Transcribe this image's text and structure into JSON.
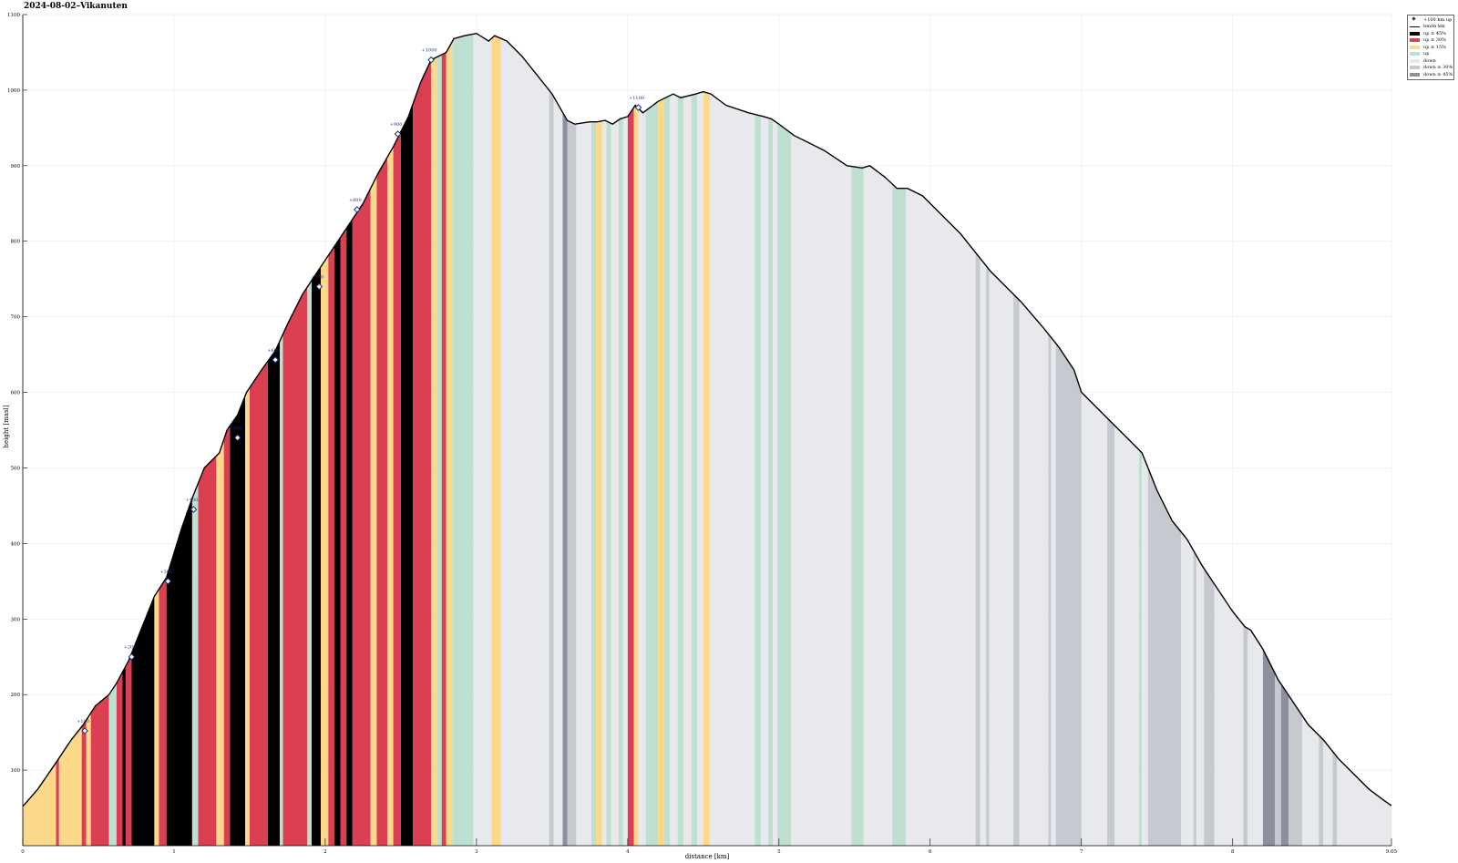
{
  "chart_data": {
    "type": "area",
    "title": "2024-08-02–Vikanuten",
    "xlabel": "distance [km]",
    "ylabel": "height [masl]",
    "xlim": [
      0,
      9.05
    ],
    "ylim": [
      0,
      1100
    ],
    "grid": true,
    "legend_position": "top-right",
    "x_ticks": [
      0,
      1,
      2,
      3,
      4,
      5,
      6,
      7,
      8,
      9.05
    ],
    "x_tick_labels": [
      "0",
      "1",
      "2",
      "3",
      "4",
      "5",
      "6",
      "7",
      "8",
      "9.05"
    ],
    "y_ticks": [
      100,
      200,
      300,
      400,
      500,
      600,
      700,
      800,
      900,
      1000,
      1100
    ],
    "y_tick_labels": [
      "100",
      "200",
      "300",
      "400",
      "500",
      "600",
      "700",
      "800",
      "900",
      "1000",
      "1100"
    ],
    "legend": [
      {
        "label": "+100 hm up",
        "kind": "marker",
        "color": "#1b2f8a"
      },
      {
        "label": "hm/m km",
        "kind": "line",
        "color": "#000000"
      },
      {
        "label": "up ≥ 45%",
        "kind": "band",
        "color": "#000000"
      },
      {
        "label": "up ≥ 30%",
        "kind": "band",
        "color": "#da4052"
      },
      {
        "label": "up ≥ 15%",
        "kind": "band",
        "color": "#fbd88a"
      },
      {
        "label": "up",
        "kind": "band",
        "color": "#bfdfd0"
      },
      {
        "label": "down",
        "kind": "band",
        "color": "#e8e9ec"
      },
      {
        "label": "down ≥ 30%",
        "kind": "band",
        "color": "#c7c9d0"
      },
      {
        "label": "down ≥ 45%",
        "kind": "band",
        "color": "#8d909c"
      }
    ],
    "profile": {
      "x": [
        0,
        0.1,
        0.22,
        0.32,
        0.4,
        0.48,
        0.57,
        0.62,
        0.7,
        0.78,
        0.87,
        0.95,
        1.05,
        1.12,
        1.2,
        1.3,
        1.35,
        1.42,
        1.48,
        1.58,
        1.67,
        1.75,
        1.85,
        1.95,
        2.05,
        2.15,
        2.25,
        2.35,
        2.45,
        2.55,
        2.63,
        2.7,
        2.75,
        2.8,
        2.85,
        2.92,
        3.0,
        3.08,
        3.12,
        3.2,
        3.3,
        3.4,
        3.5,
        3.6,
        3.65,
        3.75,
        3.8,
        3.85,
        3.9,
        3.95,
        4.0,
        4.05,
        4.1,
        4.2,
        4.3,
        4.35,
        4.45,
        4.5,
        4.55,
        4.65,
        4.8,
        4.9,
        4.95,
        5.0,
        5.1,
        5.2,
        5.3,
        5.45,
        5.55,
        5.6,
        5.7,
        5.78,
        5.85,
        5.95,
        6.1,
        6.2,
        6.3,
        6.4,
        6.5,
        6.6,
        6.75,
        6.85,
        6.95,
        7.0,
        7.1,
        7.2,
        7.3,
        7.4,
        7.5,
        7.6,
        7.7,
        7.8,
        7.9,
        8.0,
        8.08,
        8.12,
        8.2,
        8.25,
        8.3,
        8.4,
        8.5,
        8.6,
        8.7,
        8.8,
        8.9,
        9.0,
        9.05
      ],
      "y": [
        52,
        75,
        110,
        140,
        160,
        185,
        200,
        215,
        245,
        285,
        330,
        355,
        420,
        460,
        500,
        520,
        550,
        570,
        600,
        630,
        655,
        690,
        730,
        760,
        790,
        820,
        850,
        890,
        925,
        965,
        1010,
        1040,
        1045,
        1050,
        1068,
        1072,
        1075,
        1065,
        1072,
        1065,
        1045,
        1020,
        995,
        960,
        955,
        958,
        958,
        960,
        955,
        962,
        965,
        980,
        970,
        985,
        995,
        990,
        995,
        998,
        995,
        980,
        970,
        965,
        962,
        955,
        940,
        930,
        920,
        900,
        897,
        900,
        885,
        870,
        870,
        860,
        830,
        810,
        785,
        760,
        740,
        720,
        685,
        660,
        630,
        600,
        580,
        560,
        540,
        520,
        470,
        430,
        405,
        370,
        340,
        310,
        290,
        285,
        260,
        240,
        220,
        190,
        160,
        140,
        115,
        95,
        75,
        60,
        53
      ]
    },
    "segments": [
      {
        "from": 0.0,
        "to": 0.22,
        "type": "up ≥ 15%"
      },
      {
        "from": 0.22,
        "to": 0.24,
        "type": "up ≥ 30%"
      },
      {
        "from": 0.24,
        "to": 0.39,
        "type": "up ≥ 15%"
      },
      {
        "from": 0.39,
        "to": 0.42,
        "type": "up ≥ 30%"
      },
      {
        "from": 0.42,
        "to": 0.45,
        "type": "up ≥ 15%"
      },
      {
        "from": 0.45,
        "to": 0.57,
        "type": "up ≥ 30%"
      },
      {
        "from": 0.57,
        "to": 0.62,
        "type": "up"
      },
      {
        "from": 0.62,
        "to": 0.66,
        "type": "up ≥ 30%"
      },
      {
        "from": 0.66,
        "to": 0.68,
        "type": "up ≥ 45%"
      },
      {
        "from": 0.68,
        "to": 0.72,
        "type": "up ≥ 30%"
      },
      {
        "from": 0.72,
        "to": 0.75,
        "type": "up ≥ 45%"
      },
      {
        "from": 0.75,
        "to": 0.87,
        "type": "up ≥ 45%"
      },
      {
        "from": 0.87,
        "to": 0.9,
        "type": "up ≥ 15%"
      },
      {
        "from": 0.9,
        "to": 0.95,
        "type": "up ≥ 30%"
      },
      {
        "from": 0.95,
        "to": 1.12,
        "type": "up ≥ 45%"
      },
      {
        "from": 1.12,
        "to": 1.16,
        "type": "up"
      },
      {
        "from": 1.16,
        "to": 1.28,
        "type": "up ≥ 30%"
      },
      {
        "from": 1.28,
        "to": 1.33,
        "type": "up ≥ 15%"
      },
      {
        "from": 1.33,
        "to": 1.37,
        "type": "up ≥ 30%"
      },
      {
        "from": 1.37,
        "to": 1.47,
        "type": "up ≥ 45%"
      },
      {
        "from": 1.47,
        "to": 1.5,
        "type": "up ≥ 15%"
      },
      {
        "from": 1.5,
        "to": 1.62,
        "type": "up ≥ 30%"
      },
      {
        "from": 1.62,
        "to": 1.7,
        "type": "up ≥ 45%"
      },
      {
        "from": 1.7,
        "to": 1.72,
        "type": "up"
      },
      {
        "from": 1.72,
        "to": 1.88,
        "type": "up ≥ 30%"
      },
      {
        "from": 1.88,
        "to": 1.91,
        "type": "up"
      },
      {
        "from": 1.91,
        "to": 1.97,
        "type": "up ≥ 45%"
      },
      {
        "from": 1.97,
        "to": 2.02,
        "type": "up ≥ 15%"
      },
      {
        "from": 2.02,
        "to": 2.06,
        "type": "up ≥ 30%"
      },
      {
        "from": 2.06,
        "to": 2.1,
        "type": "up ≥ 45%"
      },
      {
        "from": 2.1,
        "to": 2.14,
        "type": "up ≥ 30%"
      },
      {
        "from": 2.14,
        "to": 2.18,
        "type": "up ≥ 45%"
      },
      {
        "from": 2.18,
        "to": 2.3,
        "type": "up ≥ 30%"
      },
      {
        "from": 2.3,
        "to": 2.34,
        "type": "up ≥ 15%"
      },
      {
        "from": 2.34,
        "to": 2.41,
        "type": "up ≥ 30%"
      },
      {
        "from": 2.41,
        "to": 2.45,
        "type": "up ≥ 15%"
      },
      {
        "from": 2.45,
        "to": 2.5,
        "type": "up ≥ 30%"
      },
      {
        "from": 2.5,
        "to": 2.58,
        "type": "up ≥ 45%"
      },
      {
        "from": 2.58,
        "to": 2.7,
        "type": "up ≥ 30%"
      },
      {
        "from": 2.7,
        "to": 2.74,
        "type": "up ≥ 15%"
      },
      {
        "from": 2.74,
        "to": 2.77,
        "type": "up"
      },
      {
        "from": 2.77,
        "to": 2.8,
        "type": "up ≥ 30%"
      },
      {
        "from": 2.8,
        "to": 2.84,
        "type": "up ≥ 15%"
      },
      {
        "from": 2.84,
        "to": 2.98,
        "type": "up"
      },
      {
        "from": 2.98,
        "to": 3.1,
        "type": "down"
      },
      {
        "from": 3.1,
        "to": 3.16,
        "type": "up ≥ 15%"
      },
      {
        "from": 3.16,
        "to": 3.48,
        "type": "down"
      },
      {
        "from": 3.48,
        "to": 3.51,
        "type": "down ≥ 30%"
      },
      {
        "from": 3.51,
        "to": 3.57,
        "type": "down"
      },
      {
        "from": 3.57,
        "to": 3.6,
        "type": "down ≥ 45%"
      },
      {
        "from": 3.6,
        "to": 3.66,
        "type": "down ≥ 30%"
      },
      {
        "from": 3.66,
        "to": 3.76,
        "type": "down"
      },
      {
        "from": 3.76,
        "to": 3.79,
        "type": "up"
      },
      {
        "from": 3.79,
        "to": 3.83,
        "type": "up ≥ 15%"
      },
      {
        "from": 3.83,
        "to": 3.86,
        "type": "down"
      },
      {
        "from": 3.86,
        "to": 3.89,
        "type": "up"
      },
      {
        "from": 3.89,
        "to": 3.94,
        "type": "down"
      },
      {
        "from": 3.94,
        "to": 3.97,
        "type": "up"
      },
      {
        "from": 3.97,
        "to": 4.0,
        "type": "down"
      },
      {
        "from": 4.0,
        "to": 4.04,
        "type": "up ≥ 30%"
      },
      {
        "from": 4.04,
        "to": 4.07,
        "type": "up ≥ 15%"
      },
      {
        "from": 4.07,
        "to": 4.12,
        "type": "down"
      },
      {
        "from": 4.12,
        "to": 4.2,
        "type": "up"
      },
      {
        "from": 4.2,
        "to": 4.24,
        "type": "up ≥ 15%"
      },
      {
        "from": 4.24,
        "to": 4.28,
        "type": "up"
      },
      {
        "from": 4.28,
        "to": 4.33,
        "type": "down"
      },
      {
        "from": 4.33,
        "to": 4.37,
        "type": "up"
      },
      {
        "from": 4.37,
        "to": 4.42,
        "type": "down"
      },
      {
        "from": 4.42,
        "to": 4.46,
        "type": "up"
      },
      {
        "from": 4.46,
        "to": 4.5,
        "type": "down"
      },
      {
        "from": 4.5,
        "to": 4.54,
        "type": "up ≥ 15%"
      },
      {
        "from": 4.54,
        "to": 4.84,
        "type": "down"
      },
      {
        "from": 4.84,
        "to": 4.88,
        "type": "up"
      },
      {
        "from": 4.88,
        "to": 4.93,
        "type": "down"
      },
      {
        "from": 4.93,
        "to": 4.96,
        "type": "up"
      },
      {
        "from": 4.96,
        "to": 4.99,
        "type": "down"
      },
      {
        "from": 4.99,
        "to": 5.08,
        "type": "up"
      },
      {
        "from": 5.08,
        "to": 5.48,
        "type": "down"
      },
      {
        "from": 5.48,
        "to": 5.56,
        "type": "up"
      },
      {
        "from": 5.56,
        "to": 5.75,
        "type": "down"
      },
      {
        "from": 5.75,
        "to": 5.84,
        "type": "up"
      },
      {
        "from": 5.84,
        "to": 6.3,
        "type": "down"
      },
      {
        "from": 6.3,
        "to": 6.33,
        "type": "down ≥ 30%"
      },
      {
        "from": 6.33,
        "to": 6.37,
        "type": "down"
      },
      {
        "from": 6.37,
        "to": 6.39,
        "type": "down ≥ 30%"
      },
      {
        "from": 6.39,
        "to": 6.55,
        "type": "down"
      },
      {
        "from": 6.55,
        "to": 6.59,
        "type": "down ≥ 30%"
      },
      {
        "from": 6.59,
        "to": 6.78,
        "type": "down"
      },
      {
        "from": 6.78,
        "to": 6.8,
        "type": "down ≥ 30%"
      },
      {
        "from": 6.8,
        "to": 6.83,
        "type": "down"
      },
      {
        "from": 6.83,
        "to": 7.0,
        "type": "down ≥ 30%"
      },
      {
        "from": 7.0,
        "to": 7.17,
        "type": "down"
      },
      {
        "from": 7.17,
        "to": 7.22,
        "type": "down ≥ 30%"
      },
      {
        "from": 7.22,
        "to": 7.38,
        "type": "down"
      },
      {
        "from": 7.38,
        "to": 7.4,
        "type": "up"
      },
      {
        "from": 7.4,
        "to": 7.44,
        "type": "down"
      },
      {
        "from": 7.44,
        "to": 7.66,
        "type": "down ≥ 30%"
      },
      {
        "from": 7.66,
        "to": 7.74,
        "type": "down"
      },
      {
        "from": 7.74,
        "to": 7.76,
        "type": "down ≥ 30%"
      },
      {
        "from": 7.76,
        "to": 7.81,
        "type": "down"
      },
      {
        "from": 7.81,
        "to": 7.88,
        "type": "down ≥ 30%"
      },
      {
        "from": 7.88,
        "to": 8.07,
        "type": "down"
      },
      {
        "from": 8.07,
        "to": 8.1,
        "type": "down ≥ 30%"
      },
      {
        "from": 8.1,
        "to": 8.2,
        "type": "down"
      },
      {
        "from": 8.2,
        "to": 8.28,
        "type": "down ≥ 45%"
      },
      {
        "from": 8.28,
        "to": 8.32,
        "type": "down ≥ 30%"
      },
      {
        "from": 8.32,
        "to": 8.37,
        "type": "down ≥ 45%"
      },
      {
        "from": 8.37,
        "to": 8.46,
        "type": "down ≥ 30%"
      },
      {
        "from": 8.46,
        "to": 8.57,
        "type": "down"
      },
      {
        "from": 8.57,
        "to": 8.6,
        "type": "down ≥ 30%"
      },
      {
        "from": 8.6,
        "to": 8.66,
        "type": "down"
      },
      {
        "from": 8.66,
        "to": 8.69,
        "type": "down ≥ 30%"
      },
      {
        "from": 8.69,
        "to": 9.05,
        "type": "down"
      }
    ],
    "markers": [
      {
        "label": "+100",
        "x": 0.41,
        "y": 152
      },
      {
        "label": "+200",
        "x": 0.72,
        "y": 250
      },
      {
        "label": "+300",
        "x": 0.96,
        "y": 350
      },
      {
        "label": "+400",
        "x": 1.13,
        "y": 445
      },
      {
        "label": "+500",
        "x": 1.42,
        "y": 540
      },
      {
        "label": "+600",
        "x": 1.67,
        "y": 643
      },
      {
        "label": "+700",
        "x": 1.96,
        "y": 740
      },
      {
        "label": "+800",
        "x": 2.21,
        "y": 842
      },
      {
        "label": "+900",
        "x": 2.48,
        "y": 942
      },
      {
        "label": "+1000",
        "x": 2.7,
        "y": 1040
      },
      {
        "label": "+1100",
        "x": 4.07,
        "y": 977
      }
    ]
  }
}
